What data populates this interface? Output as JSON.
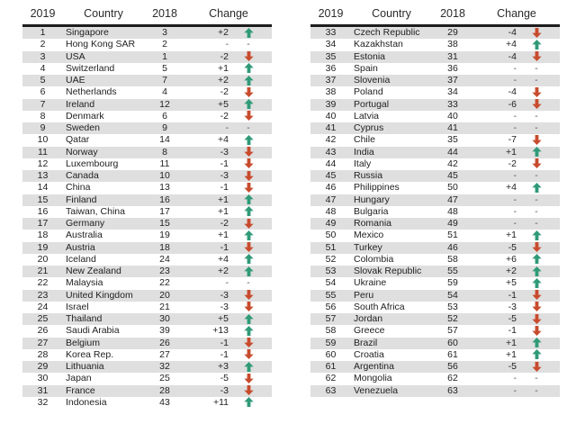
{
  "header": {
    "rank2019": "2019",
    "country": "Country",
    "rank2018": "2018",
    "change": "Change"
  },
  "colors": {
    "up_arrow": "#2f9a78",
    "down_arrow": "#c84b2d",
    "stripe": "#dfdfdf",
    "header_rule": "#1c1c1c",
    "text": "#1f1f1f",
    "dash": "#555555"
  },
  "chart_data": {
    "type": "table",
    "columns": [
      "2019",
      "Country",
      "2018",
      "Change"
    ],
    "panels": [
      {
        "rows": [
          {
            "rank": "1",
            "country": "Singapore",
            "prev": "3",
            "change": "+2",
            "dir": "up"
          },
          {
            "rank": "2",
            "country": "Hong Kong SAR",
            "prev": "2",
            "change": "-",
            "dir": "none"
          },
          {
            "rank": "3",
            "country": "USA",
            "prev": "1",
            "change": "-2",
            "dir": "down"
          },
          {
            "rank": "4",
            "country": "Switzerland",
            "prev": "5",
            "change": "+1",
            "dir": "up"
          },
          {
            "rank": "5",
            "country": "UAE",
            "prev": "7",
            "change": "+2",
            "dir": "up"
          },
          {
            "rank": "6",
            "country": "Netherlands",
            "prev": "4",
            "change": "-2",
            "dir": "down"
          },
          {
            "rank": "7",
            "country": "Ireland",
            "prev": "12",
            "change": "+5",
            "dir": "up"
          },
          {
            "rank": "8",
            "country": "Denmark",
            "prev": "6",
            "change": "-2",
            "dir": "down"
          },
          {
            "rank": "9",
            "country": "Sweden",
            "prev": "9",
            "change": "-",
            "dir": "none"
          },
          {
            "rank": "10",
            "country": "Qatar",
            "prev": "14",
            "change": "+4",
            "dir": "up"
          },
          {
            "rank": "11",
            "country": "Norway",
            "prev": "8",
            "change": "-3",
            "dir": "down"
          },
          {
            "rank": "12",
            "country": "Luxembourg",
            "prev": "11",
            "change": "-1",
            "dir": "down"
          },
          {
            "rank": "13",
            "country": "Canada",
            "prev": "10",
            "change": "-3",
            "dir": "down"
          },
          {
            "rank": "14",
            "country": "China",
            "prev": "13",
            "change": "-1",
            "dir": "down"
          },
          {
            "rank": "15",
            "country": "Finland",
            "prev": "16",
            "change": "+1",
            "dir": "up"
          },
          {
            "rank": "16",
            "country": "Taiwan, China",
            "prev": "17",
            "change": "+1",
            "dir": "up"
          },
          {
            "rank": "17",
            "country": "Germany",
            "prev": "15",
            "change": "-2",
            "dir": "down"
          },
          {
            "rank": "18",
            "country": "Australia",
            "prev": "19",
            "change": "+1",
            "dir": "up"
          },
          {
            "rank": "19",
            "country": "Austria",
            "prev": "18",
            "change": "-1",
            "dir": "down"
          },
          {
            "rank": "20",
            "country": "Iceland",
            "prev": "24",
            "change": "+4",
            "dir": "up"
          },
          {
            "rank": "21",
            "country": "New Zealand",
            "prev": "23",
            "change": "+2",
            "dir": "up"
          },
          {
            "rank": "22",
            "country": "Malaysia",
            "prev": "22",
            "change": "-",
            "dir": "none"
          },
          {
            "rank": "23",
            "country": "United Kingdom",
            "prev": "20",
            "change": "-3",
            "dir": "down"
          },
          {
            "rank": "24",
            "country": "Israel",
            "prev": "21",
            "change": "-3",
            "dir": "down"
          },
          {
            "rank": "25",
            "country": "Thailand",
            "prev": "30",
            "change": "+5",
            "dir": "up"
          },
          {
            "rank": "26",
            "country": "Saudi Arabia",
            "prev": "39",
            "change": "+13",
            "dir": "up"
          },
          {
            "rank": "27",
            "country": "Belgium",
            "prev": "26",
            "change": "-1",
            "dir": "down"
          },
          {
            "rank": "28",
            "country": "Korea Rep.",
            "prev": "27",
            "change": "-1",
            "dir": "down"
          },
          {
            "rank": "29",
            "country": "Lithuania",
            "prev": "32",
            "change": "+3",
            "dir": "up"
          },
          {
            "rank": "30",
            "country": "Japan",
            "prev": "25",
            "change": "-5",
            "dir": "down"
          },
          {
            "rank": "31",
            "country": "France",
            "prev": "28",
            "change": "-3",
            "dir": "down"
          },
          {
            "rank": "32",
            "country": "Indonesia",
            "prev": "43",
            "change": "+11",
            "dir": "up"
          }
        ]
      },
      {
        "rows": [
          {
            "rank": "33",
            "country": "Czech Republic",
            "prev": "29",
            "change": "-4",
            "dir": "down"
          },
          {
            "rank": "34",
            "country": "Kazakhstan",
            "prev": "38",
            "change": "+4",
            "dir": "up"
          },
          {
            "rank": "35",
            "country": "Estonia",
            "prev": "31",
            "change": "-4",
            "dir": "down"
          },
          {
            "rank": "36",
            "country": "Spain",
            "prev": "36",
            "change": "-",
            "dir": "none"
          },
          {
            "rank": "37",
            "country": "Slovenia",
            "prev": "37",
            "change": "-",
            "dir": "none"
          },
          {
            "rank": "38",
            "country": "Poland",
            "prev": "34",
            "change": "-4",
            "dir": "down"
          },
          {
            "rank": "39",
            "country": "Portugal",
            "prev": "33",
            "change": "-6",
            "dir": "down"
          },
          {
            "rank": "40",
            "country": "Latvia",
            "prev": "40",
            "change": "-",
            "dir": "none"
          },
          {
            "rank": "41",
            "country": "Cyprus",
            "prev": "41",
            "change": "-",
            "dir": "none"
          },
          {
            "rank": "42",
            "country": "Chile",
            "prev": "35",
            "change": "-7",
            "dir": "down"
          },
          {
            "rank": "43",
            "country": "India",
            "prev": "44",
            "change": "+1",
            "dir": "up"
          },
          {
            "rank": "44",
            "country": "Italy",
            "prev": "42",
            "change": "-2",
            "dir": "down"
          },
          {
            "rank": "45",
            "country": "Russia",
            "prev": "45",
            "change": "-",
            "dir": "none"
          },
          {
            "rank": "46",
            "country": "Philippines",
            "prev": "50",
            "change": "+4",
            "dir": "up"
          },
          {
            "rank": "47",
            "country": "Hungary",
            "prev": "47",
            "change": "-",
            "dir": "none"
          },
          {
            "rank": "48",
            "country": "Bulgaria",
            "prev": "48",
            "change": "-",
            "dir": "none"
          },
          {
            "rank": "49",
            "country": "Romania",
            "prev": "49",
            "change": "-",
            "dir": "none"
          },
          {
            "rank": "50",
            "country": "Mexico",
            "prev": "51",
            "change": "+1",
            "dir": "up"
          },
          {
            "rank": "51",
            "country": "Turkey",
            "prev": "46",
            "change": "-5",
            "dir": "down"
          },
          {
            "rank": "52",
            "country": "Colombia",
            "prev": "58",
            "change": "+6",
            "dir": "up"
          },
          {
            "rank": "53",
            "country": "Slovak Republic",
            "prev": "55",
            "change": "+2",
            "dir": "up"
          },
          {
            "rank": "54",
            "country": "Ukraine",
            "prev": "59",
            "change": "+5",
            "dir": "up"
          },
          {
            "rank": "55",
            "country": "Peru",
            "prev": "54",
            "change": "-1",
            "dir": "down"
          },
          {
            "rank": "56",
            "country": "South Africa",
            "prev": "53",
            "change": "-3",
            "dir": "down"
          },
          {
            "rank": "57",
            "country": "Jordan",
            "prev": "52",
            "change": "-5",
            "dir": "down"
          },
          {
            "rank": "58",
            "country": "Greece",
            "prev": "57",
            "change": "-1",
            "dir": "down"
          },
          {
            "rank": "59",
            "country": "Brazil",
            "prev": "60",
            "change": "+1",
            "dir": "up"
          },
          {
            "rank": "60",
            "country": "Croatia",
            "prev": "61",
            "change": "+1",
            "dir": "up"
          },
          {
            "rank": "61",
            "country": "Argentina",
            "prev": "56",
            "change": "-5",
            "dir": "down"
          },
          {
            "rank": "62",
            "country": "Mongolia",
            "prev": "62",
            "change": "-",
            "dir": "none"
          },
          {
            "rank": "63",
            "country": "Venezuela",
            "prev": "63",
            "change": "-",
            "dir": "none"
          }
        ]
      }
    ]
  }
}
